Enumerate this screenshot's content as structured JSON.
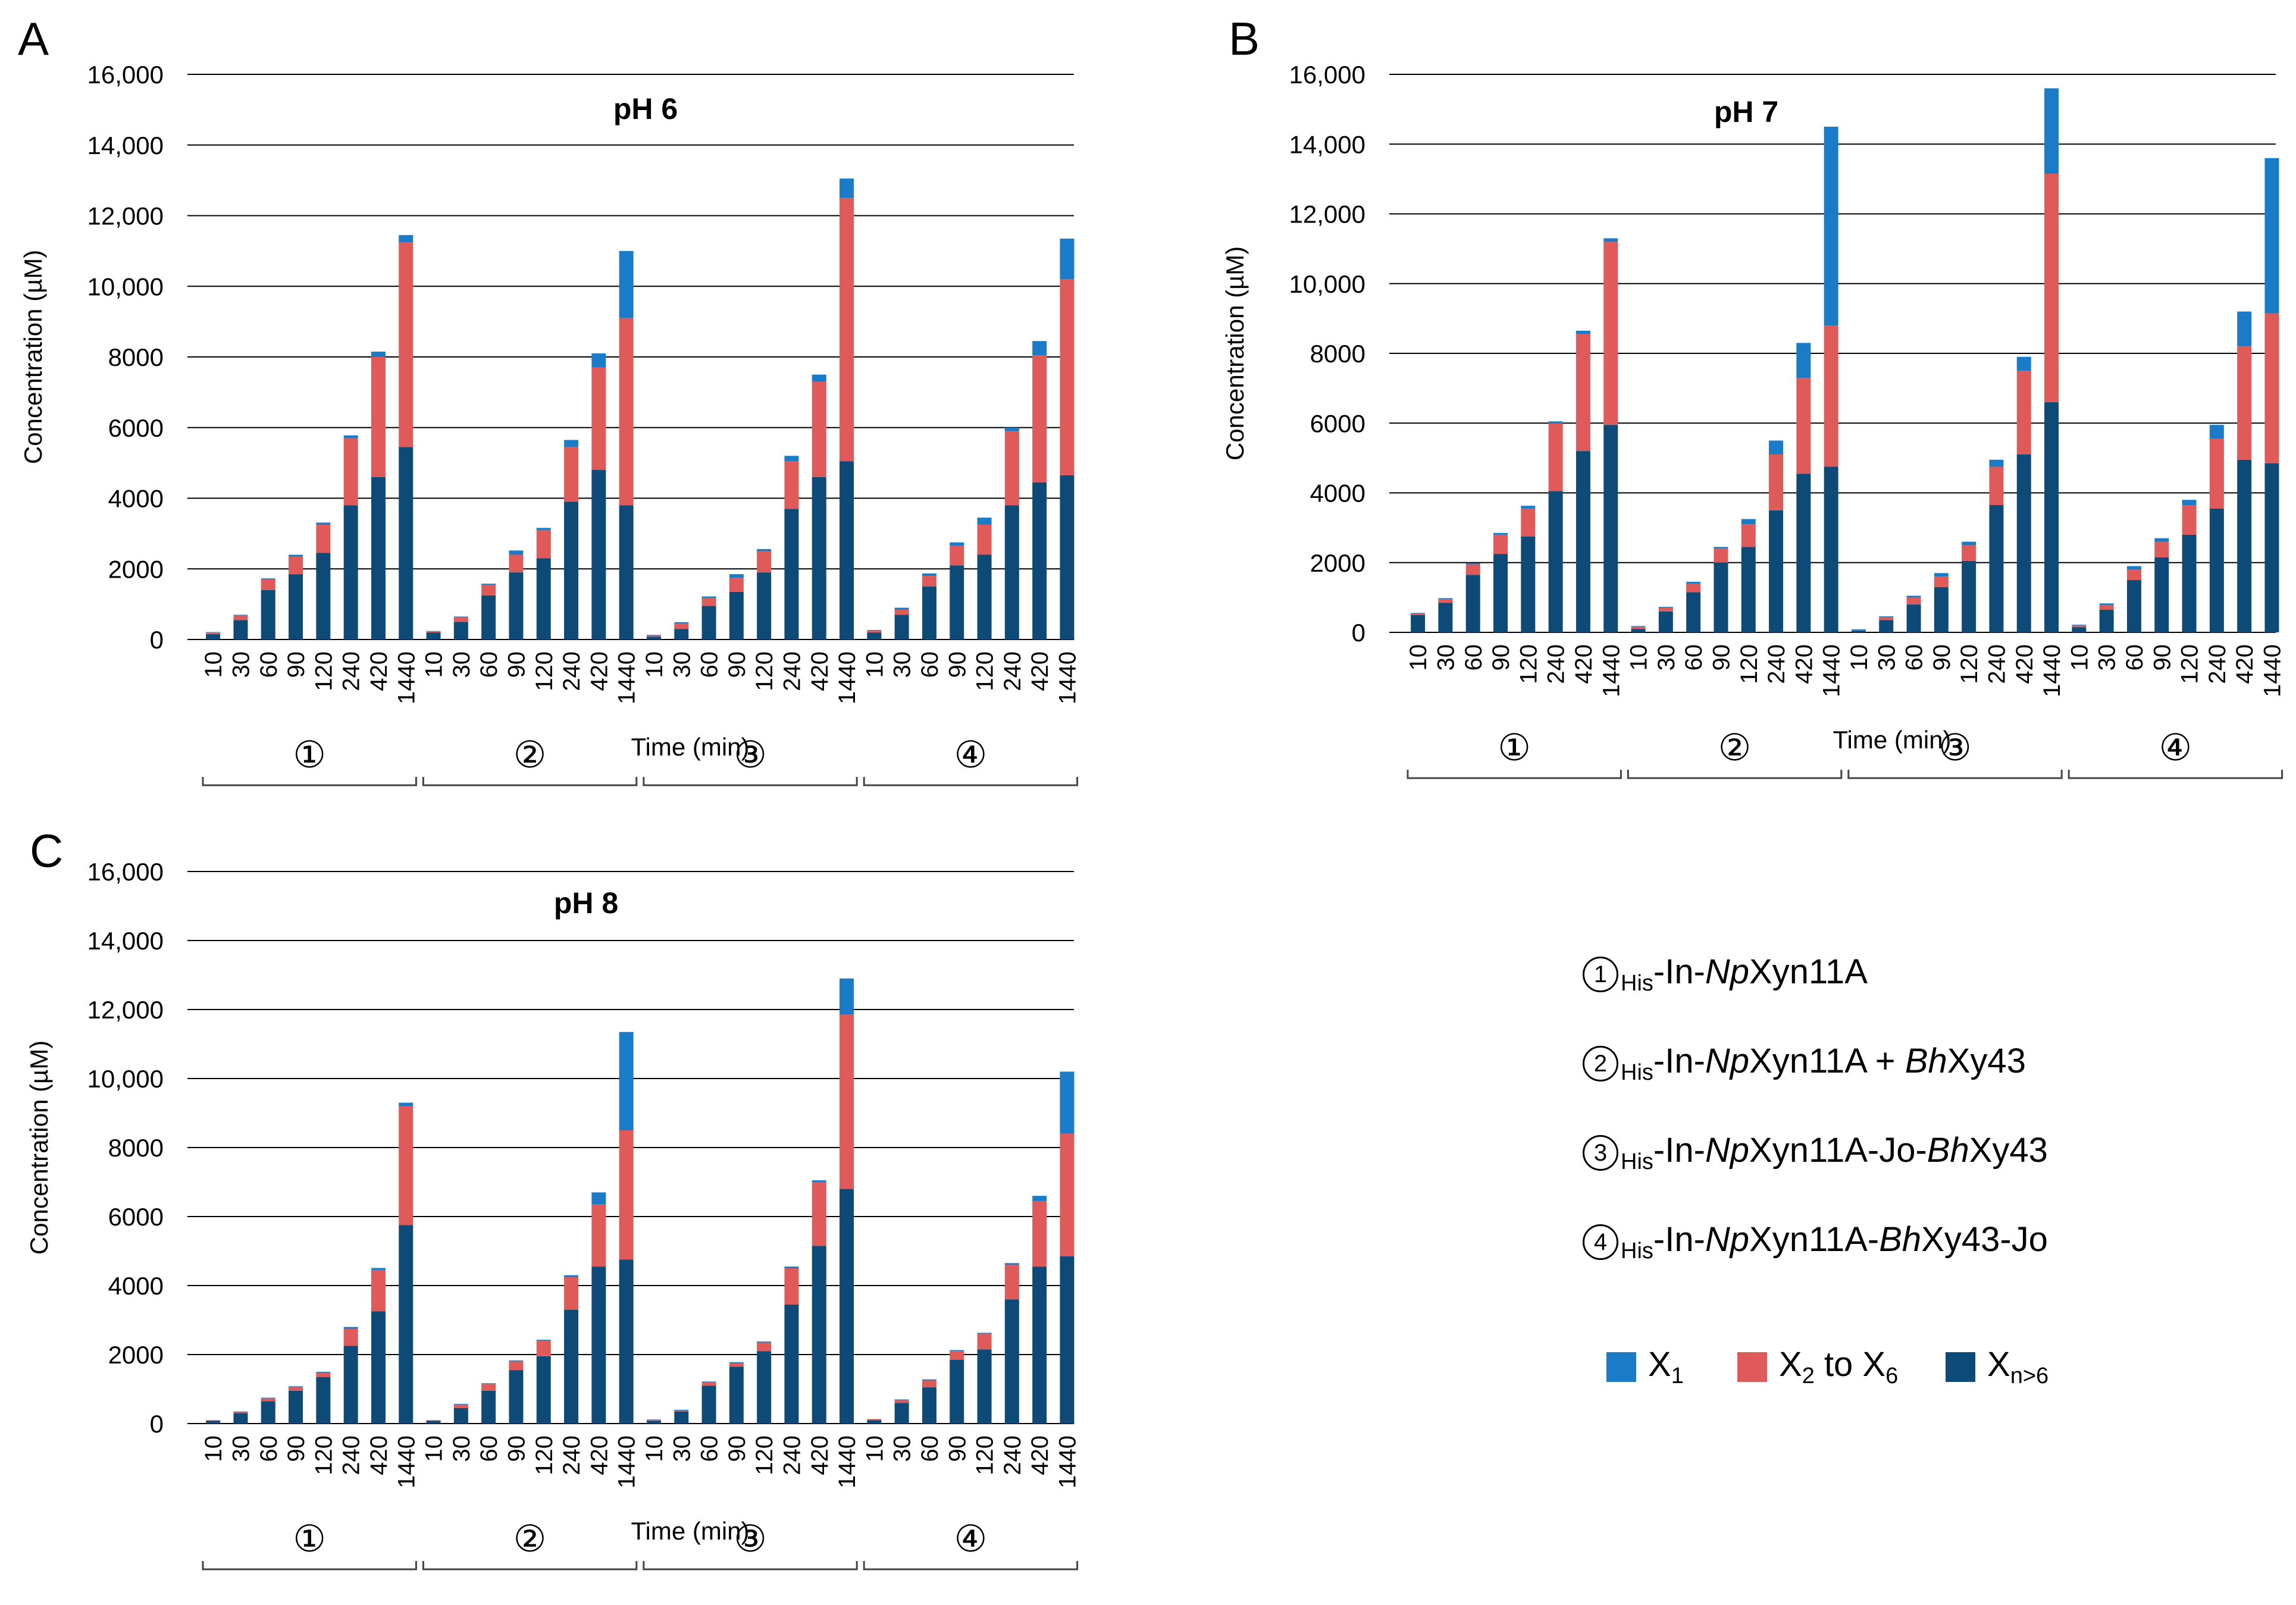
{
  "panels": [
    "A",
    "B",
    "C"
  ],
  "colors": {
    "x1": "#1a7cc8",
    "x2to6": "#e05a5a",
    "xn6": "#0d4a78",
    "grid": "#000000"
  },
  "shared_axis": {
    "ylabel": "Concentration (µM)",
    "xlabel": "Time (min)",
    "ytick_labels": [
      "0",
      "2000",
      "4000",
      "6000",
      "8000",
      "10,000",
      "12,000",
      "14,000",
      "16,000"
    ],
    "time_labels": [
      "10",
      "30",
      "60",
      "90",
      "120",
      "240",
      "420",
      "1440"
    ],
    "group_labels": [
      "①",
      "②",
      "③",
      "④"
    ]
  },
  "legend": {
    "items": [
      {
        "num": "1",
        "pre": "-In-",
        "it1": "Np",
        "mid": "Xyn11A",
        "it2": "",
        "post": ""
      },
      {
        "num": "2",
        "pre": "-In-",
        "it1": "Np",
        "mid": "Xyn11A + ",
        "it2": "Bh",
        "post": "Xy43"
      },
      {
        "num": "3",
        "pre": "-In-",
        "it1": "Np",
        "mid": "Xyn11A-Jo-",
        "it2": "Bh",
        "post": "Xy43"
      },
      {
        "num": "4",
        "pre": "-In-",
        "it1": "Np",
        "mid": "Xyn11A-",
        "it2": "Bh",
        "post": "Xy43-Jo"
      }
    ],
    "his": "His",
    "series": [
      {
        "main": "X",
        "sub": "1",
        "tail": "",
        "sub2": ""
      },
      {
        "main": "X",
        "sub": "2",
        "tail": " to X",
        "sub2": "6"
      },
      {
        "main": "X",
        "sub": "n>6",
        "tail": "",
        "sub2": ""
      }
    ]
  },
  "chart_data": [
    {
      "type": "bar",
      "stacked": true,
      "panel": "A",
      "title": "pH 6",
      "xlabel": "Time (min)",
      "ylabel": "Concentration (µM)",
      "ylim": [
        0,
        16000
      ],
      "groups": [
        "①",
        "②",
        "③",
        "④"
      ],
      "categories": [
        "10",
        "30",
        "60",
        "90",
        "120",
        "240",
        "420",
        "1440"
      ],
      "series": [
        {
          "name": "Xn>6",
          "values": [
            [
              150,
              550,
              1400,
              1850,
              2450,
              3800,
              4600,
              5450
            ],
            [
              200,
              500,
              1250,
              1900,
              2300,
              3900,
              4800,
              3800
            ],
            [
              80,
              300,
              950,
              1350,
              1900,
              3700,
              4600,
              5050
            ],
            [
              200,
              700,
              1500,
              2100,
              2400,
              3800,
              4450,
              4650
            ]
          ]
        },
        {
          "name": "X2 to X6",
          "values": [
            [
              50,
              130,
              300,
              500,
              800,
              1900,
              3400,
              5800
            ],
            [
              30,
              130,
              300,
              500,
              800,
              1550,
              2900,
              5300
            ],
            [
              30,
              150,
              230,
              400,
              600,
              1350,
              2700,
              7450
            ],
            [
              50,
              150,
              300,
              550,
              850,
              2100,
              3600,
              5550
            ]
          ]
        },
        {
          "name": "X1",
          "values": [
            [
              10,
              20,
              30,
              50,
              60,
              80,
              150,
              200
            ],
            [
              10,
              20,
              30,
              120,
              60,
              200,
              400,
              1900
            ],
            [
              20,
              40,
              40,
              100,
              60,
              150,
              200,
              550
            ],
            [
              20,
              50,
              70,
              100,
              200,
              100,
              400,
              1150
            ]
          ]
        }
      ]
    },
    {
      "type": "bar",
      "stacked": true,
      "panel": "B",
      "title": "pH 7",
      "xlabel": "Time (min)",
      "ylabel": "Concentration (µM)",
      "ylim": [
        0,
        16000
      ],
      "groups": [
        "①",
        "②",
        "③",
        "④"
      ],
      "categories": [
        "10",
        "30",
        "60",
        "90",
        "120",
        "240",
        "420",
        "1440"
      ],
      "series": [
        {
          "name": "Xn>6",
          "values": [
            [
              500,
              850,
              1650,
              2250,
              2750,
              4050,
              5200,
              5950
            ],
            [
              100,
              600,
              1150,
              2000,
              2450,
              3500,
              4550,
              4750
            ],
            [
              50,
              350,
              800,
              1300,
              2050,
              3650,
              5100,
              6600
            ],
            [
              150,
              650,
              1500,
              2150,
              2800,
              3550,
              4950,
              4850
            ]
          ]
        },
        {
          "name": "X2 to X6",
          "values": [
            [
              50,
              100,
              300,
              550,
              800,
              1950,
              3350,
              5250
            ],
            [
              50,
              100,
              250,
              400,
              650,
              1600,
              2750,
              4050
            ],
            [
              20,
              80,
              200,
              300,
              450,
              1100,
              2400,
              6550
            ],
            [
              50,
              130,
              300,
              450,
              850,
              2000,
              3250,
              4300
            ]
          ]
        },
        {
          "name": "X1",
          "values": [
            [
              10,
              30,
              30,
              50,
              80,
              50,
              100,
              100
            ],
            [
              30,
              30,
              50,
              50,
              150,
              400,
              1000,
              5700
            ],
            [
              20,
              30,
              50,
              100,
              100,
              200,
              400,
              2450
            ],
            [
              20,
              50,
              100,
              100,
              150,
              400,
              1000,
              4450
            ]
          ]
        }
      ]
    },
    {
      "type": "bar",
      "stacked": true,
      "panel": "C",
      "title": "pH 8",
      "xlabel": "Time (min)",
      "ylabel": "Concentration (µM)",
      "ylim": [
        0,
        16000
      ],
      "groups": [
        "①",
        "②",
        "③",
        "④"
      ],
      "categories": [
        "10",
        "30",
        "60",
        "90",
        "120",
        "240",
        "420",
        "1440"
      ],
      "series": [
        {
          "name": "Xn>6",
          "values": [
            [
              80,
              300,
              650,
              950,
              1350,
              2250,
              3250,
              5750
            ],
            [
              80,
              450,
              950,
              1550,
              1950,
              3300,
              4550,
              4750
            ],
            [
              80,
              350,
              1100,
              1650,
              2100,
              3450,
              5150,
              6800
            ],
            [
              100,
              600,
              1050,
              1850,
              2150,
              3600,
              4550,
              4850
            ]
          ]
        },
        {
          "name": "X2 to X6",
          "values": [
            [
              10,
              30,
              80,
              100,
              120,
              500,
              1200,
              3450
            ],
            [
              10,
              100,
              200,
              250,
              450,
              950,
              1800,
              3750
            ],
            [
              30,
              30,
              100,
              100,
              250,
              1050,
              1850,
              5050
            ],
            [
              20,
              80,
              200,
              250,
              450,
              1000,
              1900,
              3550
            ]
          ]
        },
        {
          "name": "X1",
          "values": [
            [
              10,
              20,
              20,
              30,
              30,
              50,
              60,
              100
            ],
            [
              10,
              20,
              20,
              30,
              30,
              50,
              350,
              2850
            ],
            [
              10,
              20,
              20,
              30,
              30,
              50,
              50,
              1050
            ],
            [
              10,
              20,
              30,
              30,
              30,
              50,
              150,
              1800
            ]
          ]
        }
      ]
    }
  ]
}
